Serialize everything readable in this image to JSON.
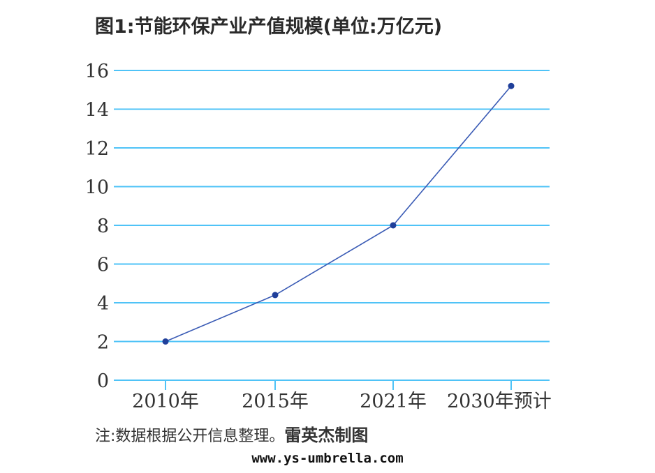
{
  "chart_data": {
    "type": "line",
    "title": "图1:节能环保产业产值规模(单位:万亿元)",
    "categories": [
      "2010年",
      "2015年",
      "2021年",
      "2030年预计"
    ],
    "series": [
      {
        "values": [
          2,
          4.4,
          8,
          15.2
        ]
      }
    ],
    "ylim": [
      0,
      16
    ],
    "yticks": [
      "0",
      "2",
      "4",
      "6",
      "8",
      "10",
      "12",
      "14",
      "16"
    ],
    "grid": true,
    "grid_color": "#4fc3f7",
    "line_color": "#3a5bb5",
    "marker_color": "#1f3f9a"
  },
  "footer": {
    "note": "注:数据根据公开信息整理。",
    "author": "雷英杰制图"
  },
  "watermark": "www.ys-umbrella.com"
}
